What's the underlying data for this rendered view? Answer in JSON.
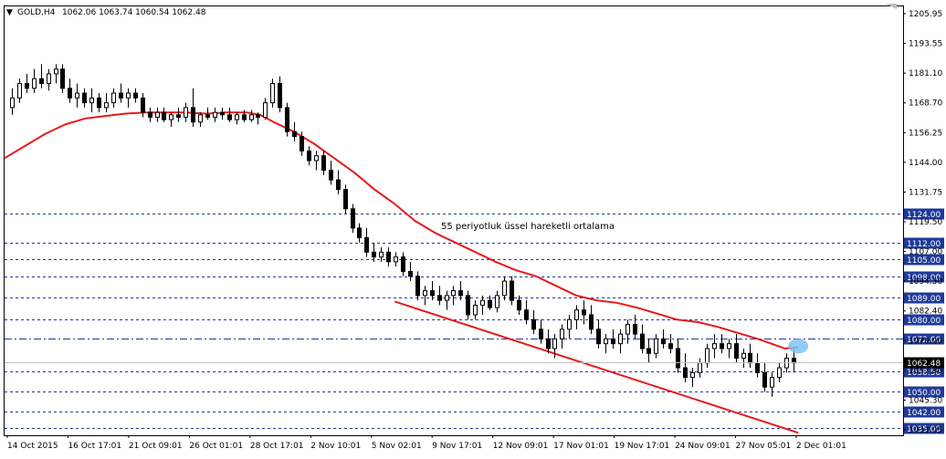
{
  "header": {
    "arrow": "▼",
    "symbol": "GOLD,H4",
    "ohlc": "1062.06 1063.74 1060.54 1062.48"
  },
  "chart_data": {
    "type": "candlestick",
    "symbol": "GOLD",
    "timeframe": "H4",
    "open": 1062.06,
    "high": 1063.74,
    "low": 1060.54,
    "close": 1062.48,
    "current_price_label": "1062.48",
    "ylim": [
      1032.0,
      1210.0
    ],
    "y_ticks": [
      "1205.95",
      "1193.55",
      "1181.10",
      "1168.70",
      "1156.25",
      "1144.00",
      "1131.75",
      "1119.50",
      "1107.00",
      "1094.50",
      "1082.40",
      "1070.00",
      "1057.80",
      "1045.30",
      "1033.05"
    ],
    "x_ticks": [
      "14 Oct 2015",
      "16 Oct 17:01",
      "21 Oct 09:01",
      "26 Oct 01:01",
      "28 Oct 17:01",
      "2 Nov 10:01",
      "5 Nov 02:01",
      "9 Nov 17:01",
      "12 Nov 09:01",
      "17 Nov 01:01",
      "19 Nov 17:01",
      "24 Nov 09:01",
      "27 Nov 05:01",
      "2 Dec 01:01"
    ],
    "horizontal_levels": [
      {
        "label": "1124.00",
        "value": 1124.0,
        "style": "dashed"
      },
      {
        "label": "1112.00",
        "value": 1112.0,
        "style": "dashed"
      },
      {
        "label": "1105.00",
        "value": 1105.0,
        "style": "dashed"
      },
      {
        "label": "1098.00",
        "value": 1098.0,
        "style": "dashed"
      },
      {
        "label": "1089.00",
        "value": 1089.0,
        "style": "dashed"
      },
      {
        "label": "1080.00",
        "value": 1080.0,
        "style": "dashed"
      },
      {
        "label": "1072.00",
        "value": 1072.0,
        "style": "dashdot"
      },
      {
        "label": "1058.50",
        "value": 1058.5,
        "style": "dashed"
      },
      {
        "label": "1050.00",
        "value": 1050.0,
        "style": "dashed"
      },
      {
        "label": "1042.00",
        "value": 1042.0,
        "style": "dashed"
      },
      {
        "label": "1035.00",
        "value": 1035.0,
        "style": "dashed"
      }
    ],
    "ema_label": "55 periyotluk üssel hareketli ortalama",
    "ema_points": [
      [
        0.0,
        1147.0
      ],
      [
        3.0,
        1152.0
      ],
      [
        6.0,
        1157.0
      ],
      [
        9.0,
        1161.0
      ],
      [
        12.0,
        1163.5
      ],
      [
        15.0,
        1164.5
      ],
      [
        18.0,
        1165.5
      ],
      [
        21.0,
        1166.0
      ],
      [
        24.0,
        1166.0
      ],
      [
        27.0,
        1166.0
      ],
      [
        30.0,
        1165.5
      ],
      [
        33.0,
        1166.0
      ],
      [
        36.0,
        1166.0
      ],
      [
        38.0,
        1165.0
      ],
      [
        40.0,
        1162.0
      ],
      [
        43.0,
        1158.0
      ],
      [
        46.0,
        1153.0
      ],
      [
        49.0,
        1147.0
      ],
      [
        52.0,
        1141.0
      ],
      [
        55.0,
        1134.0
      ],
      [
        58.0,
        1128.0
      ],
      [
        61.0,
        1121.0
      ],
      [
        64.0,
        1116.0
      ],
      [
        67.0,
        1112.0
      ],
      [
        70.0,
        1108.0
      ],
      [
        73.0,
        1104.0
      ],
      [
        76.0,
        1100.5
      ],
      [
        79.0,
        1098.0
      ],
      [
        82.0,
        1094.0
      ],
      [
        85.0,
        1090.0
      ],
      [
        88.0,
        1088.0
      ],
      [
        91.0,
        1087.0
      ],
      [
        94.0,
        1085.0
      ],
      [
        97.0,
        1082.5
      ],
      [
        100.0,
        1080.0
      ],
      [
        103.0,
        1079.0
      ],
      [
        106.0,
        1077.0
      ],
      [
        109.0,
        1074.5
      ],
      [
        112.0,
        1072.0
      ],
      [
        114.0,
        1070.0
      ],
      [
        116.0,
        1068.0
      ],
      [
        118.0,
        1068.5
      ]
    ],
    "trendline": {
      "from": [
        58.0,
        1087.5
      ],
      "to": [
        118.0,
        1033.0
      ]
    },
    "highlight": {
      "label": "ema-touch-marker",
      "x": 118.0,
      "y": 1069.0
    },
    "candles": [
      [
        1168,
        1176,
        1165,
        1172
      ],
      [
        1172,
        1180,
        1170,
        1178
      ],
      [
        1178,
        1182,
        1174,
        1176
      ],
      [
        1176,
        1184,
        1174,
        1180
      ],
      [
        1180,
        1186,
        1176,
        1178
      ],
      [
        1178,
        1184,
        1175,
        1182
      ],
      [
        1182,
        1186,
        1178,
        1184
      ],
      [
        1184,
        1186,
        1174,
        1176
      ],
      [
        1176,
        1180,
        1170,
        1172
      ],
      [
        1172,
        1178,
        1168,
        1174
      ],
      [
        1174,
        1176,
        1168,
        1170
      ],
      [
        1170,
        1176,
        1166,
        1172
      ],
      [
        1172,
        1174,
        1166,
        1168
      ],
      [
        1168,
        1174,
        1166,
        1170
      ],
      [
        1170,
        1176,
        1168,
        1174
      ],
      [
        1174,
        1178,
        1170,
        1172
      ],
      [
        1172,
        1176,
        1168,
        1174
      ],
      [
        1174,
        1176,
        1170,
        1172
      ],
      [
        1172,
        1174,
        1164,
        1166
      ],
      [
        1166,
        1168,
        1162,
        1164
      ],
      [
        1164,
        1168,
        1162,
        1166
      ],
      [
        1166,
        1168,
        1162,
        1163
      ],
      [
        1163,
        1166,
        1160,
        1165
      ],
      [
        1165,
        1168,
        1162,
        1164
      ],
      [
        1164,
        1170,
        1162,
        1168
      ],
      [
        1168,
        1176,
        1160,
        1162
      ],
      [
        1162,
        1166,
        1160,
        1165
      ],
      [
        1165,
        1168,
        1163,
        1164
      ],
      [
        1164,
        1168,
        1162,
        1166
      ],
      [
        1166,
        1168,
        1163,
        1165
      ],
      [
        1165,
        1168,
        1162,
        1163
      ],
      [
        1163,
        1166,
        1161,
        1165
      ],
      [
        1165,
        1167,
        1162,
        1163
      ],
      [
        1163,
        1167,
        1162,
        1165
      ],
      [
        1165,
        1166,
        1161,
        1164
      ],
      [
        1164,
        1172,
        1163,
        1170
      ],
      [
        1170,
        1180,
        1168,
        1178
      ],
      [
        1178,
        1181,
        1166,
        1168
      ],
      [
        1168,
        1170,
        1156,
        1158
      ],
      [
        1158,
        1162,
        1154,
        1156
      ],
      [
        1156,
        1158,
        1148,
        1150
      ],
      [
        1150,
        1152,
        1144,
        1146
      ],
      [
        1146,
        1150,
        1142,
        1148
      ],
      [
        1148,
        1150,
        1140,
        1142
      ],
      [
        1142,
        1146,
        1136,
        1138
      ],
      [
        1138,
        1142,
        1132,
        1134
      ],
      [
        1134,
        1136,
        1124,
        1126
      ],
      [
        1126,
        1128,
        1116,
        1118
      ],
      [
        1118,
        1120,
        1112,
        1114
      ],
      [
        1114,
        1118,
        1106,
        1108
      ],
      [
        1108,
        1112,
        1104,
        1106
      ],
      [
        1106,
        1110,
        1104,
        1108
      ],
      [
        1108,
        1110,
        1102,
        1104
      ],
      [
        1104,
        1108,
        1102,
        1106
      ],
      [
        1106,
        1108,
        1098,
        1100
      ],
      [
        1100,
        1104,
        1096,
        1098
      ],
      [
        1098,
        1100,
        1088,
        1090
      ],
      [
        1090,
        1094,
        1086,
        1092
      ],
      [
        1092,
        1096,
        1088,
        1090
      ],
      [
        1090,
        1094,
        1086,
        1088
      ],
      [
        1088,
        1092,
        1084,
        1090
      ],
      [
        1090,
        1094,
        1086,
        1092
      ],
      [
        1092,
        1096,
        1088,
        1090
      ],
      [
        1090,
        1092,
        1080,
        1082
      ],
      [
        1082,
        1088,
        1080,
        1086
      ],
      [
        1086,
        1090,
        1082,
        1088
      ],
      [
        1088,
        1090,
        1084,
        1085
      ],
      [
        1085,
        1092,
        1083,
        1090
      ],
      [
        1090,
        1098,
        1088,
        1096
      ],
      [
        1096,
        1098,
        1086,
        1088
      ],
      [
        1088,
        1090,
        1082,
        1084
      ],
      [
        1084,
        1088,
        1078,
        1080
      ],
      [
        1080,
        1084,
        1074,
        1076
      ],
      [
        1076,
        1080,
        1070,
        1072
      ],
      [
        1072,
        1076,
        1066,
        1068
      ],
      [
        1068,
        1074,
        1064,
        1072
      ],
      [
        1072,
        1078,
        1068,
        1076
      ],
      [
        1076,
        1082,
        1072,
        1080
      ],
      [
        1080,
        1086,
        1076,
        1084
      ],
      [
        1084,
        1088,
        1078,
        1082
      ],
      [
        1082,
        1086,
        1074,
        1076
      ],
      [
        1076,
        1080,
        1068,
        1070
      ],
      [
        1070,
        1074,
        1066,
        1072
      ],
      [
        1072,
        1076,
        1068,
        1070
      ],
      [
        1070,
        1076,
        1066,
        1074
      ],
      [
        1074,
        1080,
        1070,
        1078
      ],
      [
        1078,
        1082,
        1072,
        1074
      ],
      [
        1074,
        1078,
        1066,
        1068
      ],
      [
        1068,
        1072,
        1062,
        1066
      ],
      [
        1066,
        1074,
        1064,
        1072
      ],
      [
        1072,
        1076,
        1068,
        1070
      ],
      [
        1070,
        1074,
        1066,
        1068
      ],
      [
        1068,
        1072,
        1058,
        1060
      ],
      [
        1060,
        1066,
        1054,
        1056
      ],
      [
        1056,
        1060,
        1052,
        1058
      ],
      [
        1058,
        1064,
        1056,
        1062
      ],
      [
        1062,
        1070,
        1060,
        1068
      ],
      [
        1068,
        1074,
        1064,
        1070
      ],
      [
        1070,
        1074,
        1066,
        1068
      ],
      [
        1068,
        1072,
        1064,
        1070
      ],
      [
        1070,
        1074,
        1062,
        1064
      ],
      [
        1064,
        1068,
        1060,
        1066
      ],
      [
        1066,
        1070,
        1060,
        1062
      ],
      [
        1062,
        1066,
        1056,
        1058
      ],
      [
        1058,
        1062,
        1050,
        1052
      ],
      [
        1052,
        1058,
        1048,
        1056
      ],
      [
        1056,
        1062,
        1054,
        1060
      ],
      [
        1060,
        1066,
        1058,
        1064
      ],
      [
        1064,
        1068,
        1058,
        1062
      ]
    ]
  }
}
